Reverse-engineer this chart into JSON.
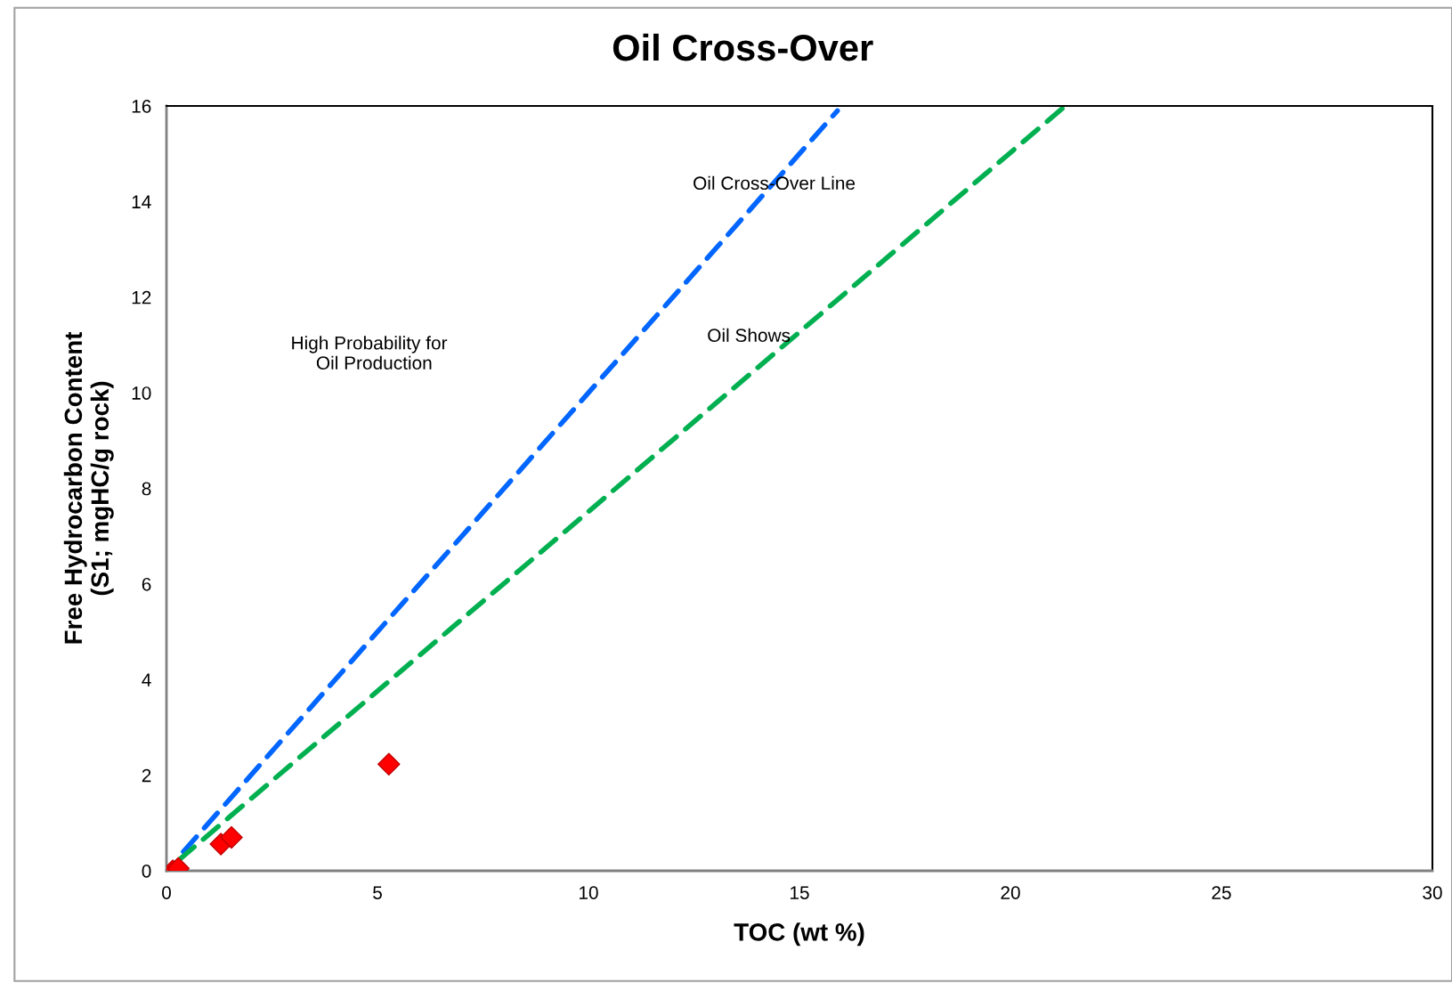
{
  "chart_data": {
    "type": "scatter",
    "title": "Oil Cross-Over",
    "xlabel": "TOC (wt %)",
    "ylabel": "Free Hydrocarbon Content\n(S1; mgHC/g rock)",
    "xlim": [
      0,
      30
    ],
    "xticks": [
      0,
      5,
      10,
      15,
      20,
      25,
      30
    ],
    "ylim": [
      0,
      16
    ],
    "yticks": [
      0,
      2,
      4,
      6,
      8,
      10,
      12,
      14,
      16
    ],
    "grid": false,
    "legend": false,
    "series": [
      {
        "type": "line",
        "color": "#0066ff",
        "line_style": "dashed",
        "marker": "none",
        "x": [
          0.4,
          15.9
        ],
        "values": [
          0.4,
          15.9
        ]
      },
      {
        "type": "line",
        "color": "#00b050",
        "line_style": "dashed",
        "marker": "none",
        "x": [
          0.3,
          21.3
        ],
        "values": [
          0.23,
          16
        ]
      },
      {
        "color": "#ff0000",
        "marker": "diamond",
        "x": [
          0.15,
          0.28,
          1.29,
          1.54,
          5.27
        ],
        "values": [
          0.0,
          0.05,
          0.56,
          0.7,
          2.23
        ]
      }
    ],
    "annotations": [
      "Oil Cross-Over Line",
      "Oil Shows",
      "High Probability for\n  Oil Production"
    ]
  }
}
